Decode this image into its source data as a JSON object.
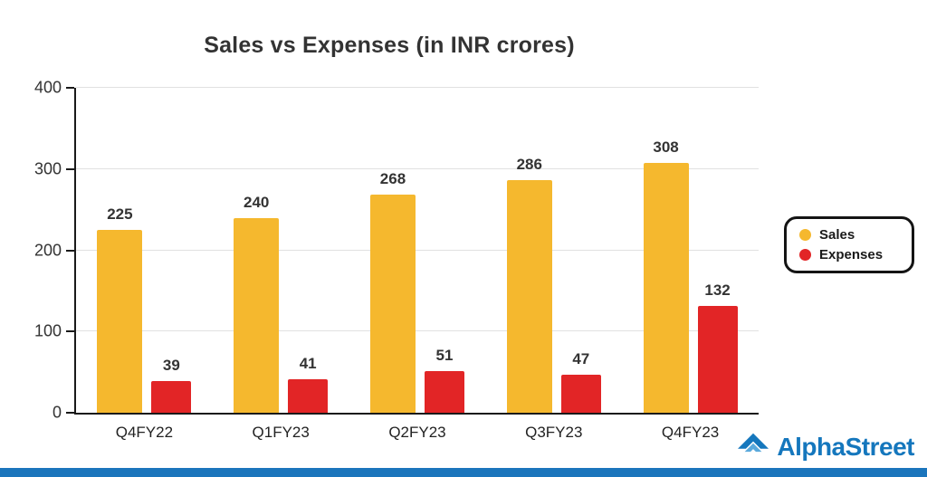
{
  "chart_data": {
    "type": "bar",
    "title": "Sales vs Expenses (in INR crores)",
    "categories": [
      "Q4FY22",
      "Q1FY23",
      "Q2FY23",
      "Q3FY23",
      "Q4FY23"
    ],
    "series": [
      {
        "name": "Sales",
        "color": "#F5B82E",
        "values": [
          225,
          240,
          268,
          286,
          308
        ]
      },
      {
        "name": "Expenses",
        "color": "#E22526",
        "values": [
          39,
          41,
          51,
          47,
          132
        ]
      }
    ],
    "xlabel": "",
    "ylabel": "",
    "ylim": [
      0,
      400
    ],
    "yticks": [
      0,
      100,
      200,
      300,
      400
    ],
    "grid": true,
    "legend_position": "right"
  },
  "branding": {
    "logo_text": "AlphaStreet",
    "logo_text_color": "#1577BD",
    "footer_bar_color": "#1B75BC"
  }
}
